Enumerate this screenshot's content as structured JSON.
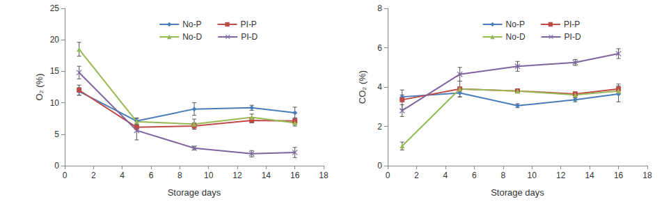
{
  "chart_data": [
    {
      "type": "line",
      "xlabel": "Storage days",
      "ylabel": "O₂ (%)",
      "x": [
        1,
        5,
        9,
        13,
        16
      ],
      "xlim": [
        0,
        18
      ],
      "xticks": [
        0,
        2,
        4,
        6,
        8,
        10,
        12,
        14,
        16,
        18
      ],
      "ylim": [
        0,
        25
      ],
      "yticks": [
        0,
        5,
        10,
        15,
        20,
        25
      ],
      "grid": false,
      "legend": "upper right",
      "series": [
        {
          "name": "No-P",
          "color": "#4a7ebb",
          "marker": "diamond",
          "values": [
            11.8,
            7.1,
            9.0,
            9.2,
            8.4
          ],
          "errors": [
            0.6,
            0.5,
            1.0,
            0.4,
            0.9
          ]
        },
        {
          "name": "PI-P",
          "color": "#be4b48",
          "marker": "square",
          "values": [
            12.0,
            6.1,
            6.3,
            7.2,
            7.1
          ],
          "errors": [
            0.8,
            0.3,
            0.5,
            0.4,
            0.5
          ]
        },
        {
          "name": "No-D",
          "color": "#98b954",
          "marker": "triangle",
          "values": [
            18.5,
            7.0,
            6.6,
            7.7,
            6.8
          ],
          "errors": [
            1.1,
            0.5,
            0.8,
            0.5,
            0.5
          ]
        },
        {
          "name": "PI-D",
          "color": "#7e649e",
          "marker": "x",
          "values": [
            14.8,
            5.6,
            2.8,
            1.9,
            2.1
          ],
          "errors": [
            1.0,
            1.5,
            0.3,
            0.5,
            0.8
          ]
        }
      ]
    },
    {
      "type": "line",
      "xlabel": "Storage days",
      "ylabel": "CO₂ (%)",
      "x": [
        1,
        5,
        9,
        13,
        16
      ],
      "xlim": [
        0,
        18
      ],
      "xticks": [
        0,
        2,
        4,
        6,
        8,
        10,
        12,
        14,
        16,
        18
      ],
      "ylim": [
        0,
        8
      ],
      "yticks": [
        0,
        2,
        4,
        6,
        8
      ],
      "grid": false,
      "legend": "upper right",
      "series": [
        {
          "name": "No-P",
          "color": "#4a7ebb",
          "marker": "diamond",
          "values": [
            3.5,
            3.7,
            3.05,
            3.35,
            3.65
          ],
          "errors": [
            0.1,
            0.2,
            0.1,
            0.1,
            0.4
          ]
        },
        {
          "name": "PI-P",
          "color": "#be4b48",
          "marker": "square",
          "values": [
            3.35,
            3.9,
            3.8,
            3.65,
            3.9
          ],
          "errors": [
            0.5,
            0.1,
            0.1,
            0.1,
            0.25
          ]
        },
        {
          "name": "No-D",
          "color": "#98b954",
          "marker": "triangle",
          "values": [
            1.0,
            3.9,
            3.8,
            3.6,
            3.8
          ],
          "errors": [
            0.2,
            0.4,
            0.1,
            0.1,
            0.1
          ]
        },
        {
          "name": "PI-D",
          "color": "#7e649e",
          "marker": "x",
          "values": [
            2.8,
            4.65,
            5.05,
            5.25,
            5.7
          ],
          "errors": [
            0.3,
            0.35,
            0.25,
            0.15,
            0.25
          ]
        }
      ]
    }
  ]
}
